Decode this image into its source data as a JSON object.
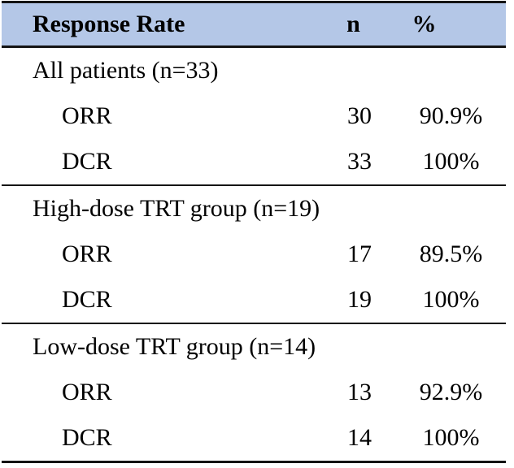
{
  "colors": {
    "header_bg": "#b4c7e7",
    "border": "#141414",
    "text": "#000000"
  },
  "table": {
    "header": {
      "label": "Response Rate",
      "n": "n",
      "percent": "%"
    },
    "sections": [
      {
        "title": "All patients (n=33)",
        "rows": [
          {
            "label": "ORR",
            "n": "30",
            "percent": "90.9%"
          },
          {
            "label": "DCR",
            "n": "33",
            "percent": "100%"
          }
        ]
      },
      {
        "title": "High-dose TRT group (n=19)",
        "rows": [
          {
            "label": "ORR",
            "n": "17",
            "percent": "89.5%"
          },
          {
            "label": "DCR",
            "n": "19",
            "percent": "100%"
          }
        ]
      },
      {
        "title": "Low-dose TRT group (n=14)",
        "rows": [
          {
            "label": "ORR",
            "n": "13",
            "percent": "92.9%"
          },
          {
            "label": "DCR",
            "n": "14",
            "percent": "100%"
          }
        ]
      }
    ]
  }
}
